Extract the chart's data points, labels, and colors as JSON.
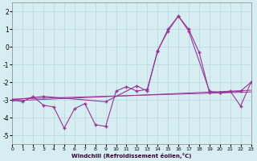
{
  "xlabel": "Windchill (Refroidissement éolien,°C)",
  "background_color": "#d6eef2",
  "grid_color": "#b8d8dc",
  "line_color": "#993399",
  "xlim": [
    0,
    23
  ],
  "ylim": [
    -5.5,
    2.5
  ],
  "yticks": [
    -5,
    -4,
    -3,
    -2,
    -1,
    0,
    1,
    2
  ],
  "xticks": [
    0,
    1,
    2,
    3,
    4,
    5,
    6,
    7,
    8,
    9,
    10,
    11,
    12,
    13,
    14,
    15,
    16,
    17,
    18,
    19,
    20,
    21,
    22,
    23
  ],
  "line_jagged_x": [
    0,
    1,
    2,
    3,
    4,
    5,
    6,
    7,
    8,
    9,
    10,
    11,
    12,
    13,
    14,
    15,
    16,
    17,
    18,
    19,
    20,
    21,
    22,
    23
  ],
  "line_jagged_y": [
    -3.0,
    -3.1,
    -2.8,
    -3.3,
    -3.4,
    -4.6,
    -3.5,
    -3.2,
    -4.4,
    -4.5,
    -2.5,
    -2.25,
    -2.5,
    -2.4,
    -0.25,
    1.0,
    1.75,
    1.0,
    -0.3,
    -2.6,
    -2.6,
    -2.5,
    -3.35,
    -2.0
  ],
  "line_smooth_x": [
    0,
    3,
    9,
    12,
    13,
    14,
    15,
    16,
    17,
    19,
    20,
    22,
    23
  ],
  "line_smooth_y": [
    -3.0,
    -2.8,
    -3.1,
    -2.2,
    -2.5,
    -0.2,
    0.9,
    1.75,
    0.9,
    -2.5,
    -2.6,
    -2.5,
    -2.0
  ],
  "line_trend1_x": [
    0,
    23
  ],
  "line_trend1_y": [
    -3.05,
    -2.45
  ],
  "line_trend2_x": [
    0,
    23
  ],
  "line_trend2_y": [
    -2.95,
    -2.55
  ]
}
